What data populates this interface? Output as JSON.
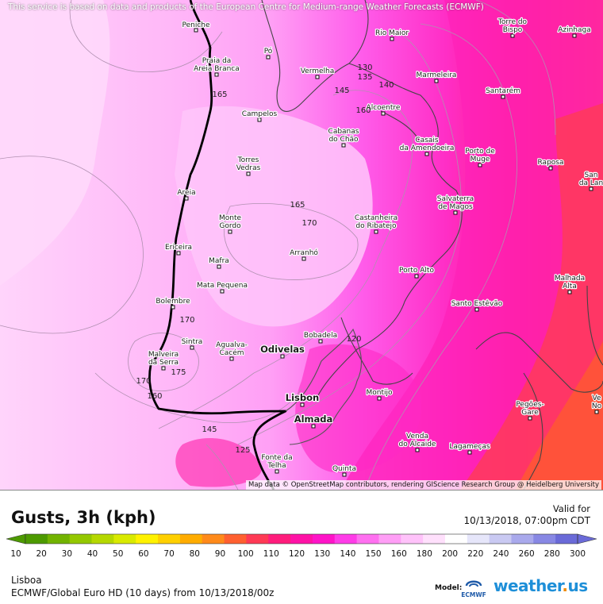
{
  "header": {
    "disclaimer": "This service is based on data and products of the European Centre for Medium-range Weather Forecasts (ECMWF)"
  },
  "map": {
    "attribution": "Map data © OpenStreetMap contributors, rendering GIScience Research Group @ Heidelberg University",
    "places": [
      {
        "name": "Peniche",
        "lines": [
          "Peniche"
        ]
      },
      {
        "name": "Rio Maior",
        "lines": [
          "Rio Maior"
        ]
      },
      {
        "name": "Torre do Bispo",
        "lines": [
          "Torre do",
          "Bispo"
        ]
      },
      {
        "name": "Azinhaga",
        "lines": [
          "Azinhaga"
        ]
      },
      {
        "name": "Pó",
        "lines": [
          "Pó"
        ]
      },
      {
        "name": "Praia da Areia Branca",
        "lines": [
          "Praia da",
          "Areia Branca"
        ]
      },
      {
        "name": "Vermelha",
        "lines": [
          "Vermelha"
        ]
      },
      {
        "name": "Marmeleira",
        "lines": [
          "Marmeleira"
        ]
      },
      {
        "name": "Santarém",
        "lines": [
          "Santarém"
        ]
      },
      {
        "name": "Alcoentre",
        "lines": [
          "Alcoentre"
        ]
      },
      {
        "name": "Campelos",
        "lines": [
          "Campelos"
        ]
      },
      {
        "name": "Cabanas do Chão",
        "lines": [
          "Cabanas",
          "do Chão"
        ]
      },
      {
        "name": "Casais da Amendoeira",
        "lines": [
          "Casais",
          "da Amendoeira"
        ]
      },
      {
        "name": "Porto de Muge",
        "lines": [
          "Porto de",
          "Muge"
        ]
      },
      {
        "name": "Raposa",
        "lines": [
          "Raposa"
        ]
      },
      {
        "name": "San da Lan",
        "lines": [
          "San",
          "da Lan"
        ]
      },
      {
        "name": "Torres Vedras",
        "lines": [
          "Torres",
          "Vedras"
        ]
      },
      {
        "name": "Areia",
        "lines": [
          "Areia"
        ]
      },
      {
        "name": "Salvaterra de Magos",
        "lines": [
          "Salvaterra",
          "de Magos"
        ]
      },
      {
        "name": "Monte Gordo",
        "lines": [
          "Monte",
          "Gordo"
        ]
      },
      {
        "name": "Castanheira do Ribatejo",
        "lines": [
          "Castanheira",
          "do Ribatejo"
        ]
      },
      {
        "name": "Ericeira",
        "lines": [
          "Ericeira"
        ]
      },
      {
        "name": "Arranhó",
        "lines": [
          "Arranhó"
        ]
      },
      {
        "name": "Mafra",
        "lines": [
          "Mafra"
        ]
      },
      {
        "name": "Porto Alto",
        "lines": [
          "Porto Alto"
        ]
      },
      {
        "name": "Malhada Alta",
        "lines": [
          "Malhada",
          "Alta"
        ]
      },
      {
        "name": "Mata Pequena",
        "lines": [
          "Mata Pequena"
        ]
      },
      {
        "name": "Bolembre",
        "lines": [
          "Bolembre"
        ]
      },
      {
        "name": "Santo Estêvão",
        "lines": [
          "Santo Estêvão"
        ]
      },
      {
        "name": "Bobadela",
        "lines": [
          "Bobadela"
        ]
      },
      {
        "name": "Sintra",
        "lines": [
          "Sintra"
        ]
      },
      {
        "name": "Agualva-Cacém",
        "lines": [
          "Agualva-",
          "Cacém"
        ]
      },
      {
        "name": "Odivelas",
        "lines": [
          "Odivelas"
        ],
        "big": true
      },
      {
        "name": "Malveira da Serra",
        "lines": [
          "Malveira",
          "da Serra"
        ]
      },
      {
        "name": "Montijo",
        "lines": [
          "Montijo"
        ]
      },
      {
        "name": "Lisbon",
        "lines": [
          "Lisbon"
        ],
        "big": true
      },
      {
        "name": "Almada",
        "lines": [
          "Almada"
        ],
        "big": true
      },
      {
        "name": "Pegões-Gare",
        "lines": [
          "Pegões-",
          "Gare"
        ]
      },
      {
        "name": "Ve No",
        "lines": [
          "Ve",
          "No"
        ]
      },
      {
        "name": "Venda do Alcaide",
        "lines": [
          "Venda",
          "do Alcaide"
        ]
      },
      {
        "name": "Lagameças",
        "lines": [
          "Lagameças"
        ]
      },
      {
        "name": "Fonte da Telha",
        "lines": [
          "Fonte da",
          "Telha"
        ]
      },
      {
        "name": "Quinta",
        "lines": [
          "Quinta"
        ]
      }
    ],
    "contour_labels": [
      {
        "text": "165"
      },
      {
        "text": "130"
      },
      {
        "text": "135"
      },
      {
        "text": "140"
      },
      {
        "text": "145"
      },
      {
        "text": "160"
      },
      {
        "text": "165"
      },
      {
        "text": "170"
      },
      {
        "text": "170"
      },
      {
        "text": "175"
      },
      {
        "text": "170"
      },
      {
        "text": "160"
      },
      {
        "text": "145"
      },
      {
        "text": "125"
      },
      {
        "text": "120"
      }
    ]
  },
  "legend": {
    "title": "Gusts, 3h (kph)",
    "valid_label": "Valid for",
    "valid_time": "10/13/2018, 07:00pm CDT",
    "colors": [
      "#4d9a00",
      "#72b300",
      "#94c800",
      "#b5d800",
      "#d9ea00",
      "#fff200",
      "#ffd000",
      "#ffac00",
      "#ff8a1a",
      "#ff6030",
      "#ff3a55",
      "#ff1c7c",
      "#ff12a6",
      "#ff14c8",
      "#ff3ce8",
      "#ff70f0",
      "#ff9ef6",
      "#ffc2fa",
      "#ffe0fc",
      "#ffffff",
      "#e6e6fa",
      "#c9c9f2",
      "#a9a9ec",
      "#8888e4",
      "#6a6ad8"
    ],
    "ticks": [
      "10",
      "20",
      "30",
      "40",
      "50",
      "60",
      "70",
      "80",
      "90",
      "100",
      "110",
      "120",
      "130",
      "140",
      "150",
      "160",
      "180",
      "200",
      "220",
      "240",
      "260",
      "280",
      "300"
    ]
  },
  "footer": {
    "location": "Lisboa",
    "model_run": "ECMWF/Global Euro HD (10 days) from 10/13/2018/00z",
    "model_label": "Model:",
    "model_logo_text": "ECMWF",
    "brand_name": "weather",
    "brand_tld": "us"
  }
}
